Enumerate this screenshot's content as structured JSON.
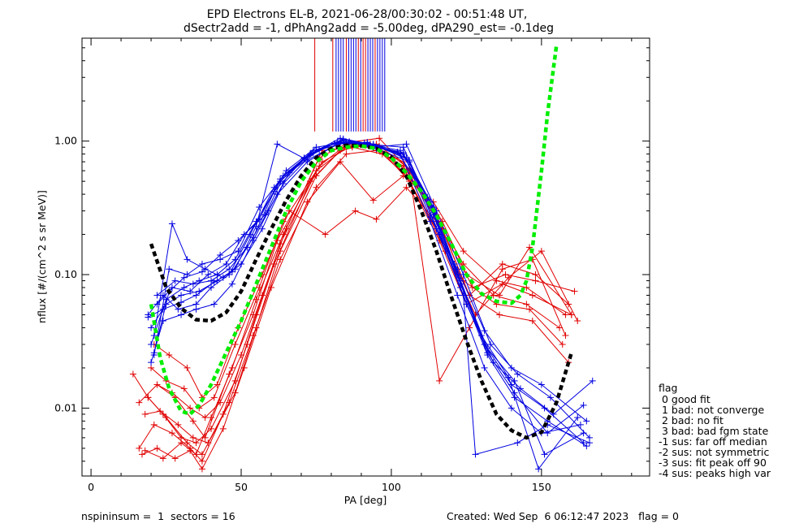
{
  "chart_data": {
    "type": "line",
    "title_line1": "EPD Electrons EL-B, 2021-06-28/00:30:02 - 00:51:48 UT,",
    "title_line2": "dSectr2add = -1, dPhAng2add = -5.00deg, dPA290_est=  -0.1deg",
    "xlabel": "PA [deg]",
    "ylabel": "nflux [#/(cm^2 s sr MeV)]",
    "xlim": [
      -3,
      186
    ],
    "ylim": [
      0.0031,
      5.9
    ],
    "yscale": "log",
    "xticks": [
      0,
      50,
      100,
      150
    ],
    "xtick_labels": [
      "0",
      "50",
      "100",
      "150"
    ],
    "yticks": [
      0.01,
      0.1,
      1.0
    ],
    "ytick_labels": [
      "0.01",
      "0.10",
      "1.00"
    ],
    "grid": false,
    "colors": {
      "red_data": "#e00000",
      "blue_data": "#0000e0",
      "black_fit": "#000000",
      "green_fit": "#00ee00"
    },
    "fits": [
      {
        "style": "black-dashed",
        "x": [
          20,
          25,
          30,
          35,
          40,
          45,
          50,
          55,
          60,
          65,
          70,
          75,
          80,
          85,
          90,
          95,
          100,
          105,
          110,
          115,
          120,
          125,
          130,
          135,
          140,
          145,
          150,
          155,
          160
        ],
        "y": [
          0.17,
          0.08,
          0.056,
          0.046,
          0.045,
          0.052,
          0.075,
          0.13,
          0.22,
          0.36,
          0.55,
          0.75,
          0.88,
          0.93,
          0.92,
          0.88,
          0.76,
          0.55,
          0.3,
          0.15,
          0.068,
          0.032,
          0.016,
          0.009,
          0.0068,
          0.006,
          0.0066,
          0.011,
          0.026
        ]
      },
      {
        "style": "green-dashed",
        "x": [
          20,
          23,
          26,
          30,
          33,
          36,
          40,
          45,
          50,
          55,
          60,
          65,
          70,
          75,
          80,
          85,
          90,
          95,
          100,
          105,
          110,
          115,
          120,
          125,
          130,
          135,
          140,
          143,
          145,
          147,
          150,
          152,
          155
        ],
        "y": [
          0.06,
          0.024,
          0.014,
          0.0095,
          0.009,
          0.0105,
          0.015,
          0.026,
          0.045,
          0.085,
          0.16,
          0.3,
          0.5,
          0.7,
          0.85,
          0.9,
          0.92,
          0.88,
          0.75,
          0.58,
          0.42,
          0.28,
          0.17,
          0.1,
          0.072,
          0.063,
          0.061,
          0.07,
          0.09,
          0.16,
          0.6,
          1.6,
          5.2
        ]
      }
    ],
    "vertical_lines": [
      {
        "x": 74.5,
        "color": "red"
      },
      {
        "x": 80.5,
        "color": "red"
      },
      {
        "x": 81.6,
        "color": "blue"
      },
      {
        "x": 82.4,
        "color": "blue"
      },
      {
        "x": 83.2,
        "color": "blue"
      },
      {
        "x": 84.0,
        "color": "blue"
      },
      {
        "x": 85.0,
        "color": "red"
      },
      {
        "x": 85.8,
        "color": "blue"
      },
      {
        "x": 86.6,
        "color": "blue"
      },
      {
        "x": 87.4,
        "color": "blue"
      },
      {
        "x": 88.2,
        "color": "blue"
      },
      {
        "x": 89.0,
        "color": "red"
      },
      {
        "x": 89.8,
        "color": "blue"
      },
      {
        "x": 90.6,
        "color": "red"
      },
      {
        "x": 91.4,
        "color": "red"
      },
      {
        "x": 92.2,
        "color": "blue"
      },
      {
        "x": 93.0,
        "color": "blue"
      },
      {
        "x": 93.8,
        "color": "blue"
      },
      {
        "x": 94.6,
        "color": "red"
      },
      {
        "x": 95.4,
        "color": "blue"
      },
      {
        "x": 96.2,
        "color": "blue"
      },
      {
        "x": 97.0,
        "color": "blue"
      },
      {
        "x": 97.8,
        "color": "blue"
      }
    ],
    "data_series": [
      {
        "color": "red",
        "x": [
          14,
          19,
          25,
          32,
          37,
          48,
          55,
          63,
          75,
          85,
          95,
          105,
          117,
          126,
          136,
          147,
          159
        ],
        "y": [
          0.018,
          0.012,
          0.0085,
          0.0055,
          0.0045,
          0.013,
          0.04,
          0.15,
          0.55,
          0.95,
          0.9,
          0.6,
          0.22,
          0.07,
          0.05,
          0.045,
          0.022
        ]
      },
      {
        "color": "red",
        "x": [
          16,
          21,
          27,
          33,
          37,
          44,
          52,
          61,
          73,
          83,
          93,
          104,
          115,
          124,
          135,
          146,
          157
        ],
        "y": [
          0.005,
          0.0075,
          0.0065,
          0.005,
          0.004,
          0.009,
          0.03,
          0.12,
          0.5,
          0.85,
          0.95,
          0.7,
          0.28,
          0.09,
          0.06,
          0.055,
          0.03
        ]
      },
      {
        "color": "red",
        "x": [
          16,
          22,
          28,
          34,
          38,
          46,
          54,
          62,
          75,
          85,
          95,
          105,
          116,
          125,
          137,
          147,
          160
        ],
        "y": [
          0.011,
          0.015,
          0.012,
          0.008,
          0.006,
          0.018,
          0.05,
          0.18,
          0.6,
          0.9,
          0.95,
          0.55,
          0.18,
          0.06,
          0.085,
          0.07,
          0.05
        ]
      },
      {
        "color": "red",
        "x": [
          18,
          24,
          30,
          35,
          40,
          47,
          55,
          64,
          76,
          86,
          96,
          106,
          117,
          127,
          138,
          148,
          161
        ],
        "y": [
          0.0048,
          0.0042,
          0.0055,
          0.0045,
          0.0085,
          0.02,
          0.065,
          0.2,
          0.75,
          0.98,
          0.92,
          0.62,
          0.25,
          0.08,
          0.1,
          0.09,
          0.075
        ]
      },
      {
        "color": "red",
        "x": [
          20,
          25,
          31,
          36,
          41,
          48,
          56,
          64,
          77,
          87,
          96,
          106,
          116,
          126,
          137,
          148,
          159
        ],
        "y": [
          0.02,
          0.016,
          0.014,
          0.01,
          0.012,
          0.03,
          0.08,
          0.25,
          0.7,
          0.92,
          0.88,
          0.5,
          0.2,
          0.07,
          0.12,
          0.1,
          0.06
        ]
      },
      {
        "color": "red",
        "x": [
          18,
          23,
          29,
          34,
          39,
          46,
          54,
          63,
          75,
          85,
          95,
          104,
          114,
          124,
          134,
          145,
          156
        ],
        "y": [
          0.009,
          0.0095,
          0.0075,
          0.006,
          0.0055,
          0.011,
          0.035,
          0.13,
          0.45,
          0.8,
          0.85,
          0.65,
          0.3,
          0.12,
          0.07,
          0.06,
          0.04
        ]
      },
      {
        "color": "red",
        "x": [
          17,
          22,
          28,
          33,
          37,
          44,
          51,
          60,
          72,
          83,
          94,
          104,
          114,
          124,
          135,
          145,
          158
        ],
        "y": [
          0.0045,
          0.005,
          0.0042,
          0.0048,
          0.0035,
          0.007,
          0.02,
          0.08,
          0.35,
          0.7,
          0.36,
          0.55,
          0.35,
          0.15,
          0.09,
          0.08,
          0.05
        ]
      },
      {
        "color": "red",
        "x": [
          21,
          26,
          32,
          37,
          42,
          49,
          57,
          66,
          78,
          88,
          95,
          105,
          115,
          125,
          136,
          146,
          160
        ],
        "y": [
          0.03,
          0.025,
          0.02,
          0.012,
          0.015,
          0.04,
          0.1,
          0.3,
          0.2,
          0.3,
          0.26,
          0.45,
          0.25,
          0.1,
          0.07,
          0.16,
          0.05
        ]
      },
      {
        "color": "red",
        "x": [
          19,
          24,
          30,
          35,
          40,
          48,
          55,
          63,
          76,
          86,
          96,
          106,
          116,
          126,
          137,
          147,
          158
        ],
        "y": [
          0.012,
          0.009,
          0.006,
          0.0055,
          0.007,
          0.016,
          0.05,
          0.17,
          0.65,
          0.98,
          1.05,
          0.6,
          0.016,
          0.04,
          0.11,
          0.13,
          0.035
        ]
      },
      {
        "color": "red",
        "x": [
          22,
          27,
          33,
          38,
          43,
          50,
          57,
          65,
          77,
          87,
          97,
          107,
          118,
          128,
          139,
          150,
          162
        ],
        "y": [
          0.015,
          0.013,
          0.01,
          0.0085,
          0.011,
          0.025,
          0.07,
          0.22,
          0.85,
          0.9,
          0.8,
          0.5,
          0.15,
          0.05,
          0.095,
          0.15,
          0.045
        ]
      },
      {
        "color": "blue",
        "x": [
          19,
          24,
          29,
          35,
          40,
          46,
          53,
          61,
          71,
          82,
          92,
          103,
          113,
          122,
          131,
          140,
          151,
          164
        ],
        "y": [
          0.05,
          0.07,
          0.055,
          0.06,
          0.08,
          0.1,
          0.2,
          0.45,
          0.75,
          0.98,
          0.95,
          0.85,
          0.35,
          0.1,
          0.03,
          0.015,
          0.01,
          0.0055
        ]
      },
      {
        "color": "blue",
        "x": [
          20,
          25,
          31,
          36,
          42,
          48,
          55,
          63,
          73,
          83,
          93,
          104,
          114,
          123,
          132,
          141,
          152,
          165
        ],
        "y": [
          0.03,
          0.065,
          0.08,
          0.09,
          0.1,
          0.13,
          0.25,
          0.5,
          0.8,
          1.05,
          0.92,
          0.8,
          0.28,
          0.08,
          0.025,
          0.012,
          0.008,
          0.0052
        ]
      },
      {
        "color": "blue",
        "x": [
          21,
          26,
          32,
          37,
          43,
          49,
          56,
          64,
          74,
          84,
          94,
          105,
          115,
          124,
          133,
          142,
          153,
          166
        ],
        "y": [
          0.025,
          0.11,
          0.1,
          0.12,
          0.13,
          0.15,
          0.32,
          0.55,
          0.85,
          1.0,
          0.9,
          0.95,
          0.3,
          0.1,
          0.03,
          0.018,
          0.012,
          0.006
        ]
      },
      {
        "color": "blue",
        "x": [
          20,
          24,
          30,
          35,
          41,
          47,
          54,
          62,
          72,
          82,
          92,
          103,
          113,
          122,
          131,
          140,
          150,
          163
        ],
        "y": [
          0.022,
          0.045,
          0.05,
          0.055,
          0.06,
          0.085,
          0.18,
          0.4,
          0.7,
          0.95,
          0.98,
          0.8,
          0.25,
          0.07,
          0.02,
          0.01,
          0.0065,
          0.0075
        ]
      },
      {
        "color": "blue",
        "x": [
          22,
          27,
          33,
          39,
          45,
          51,
          58,
          65,
          75,
          85,
          95,
          106,
          116,
          125,
          134,
          143,
          154,
          167
        ],
        "y": [
          0.06,
          0.08,
          0.075,
          0.1,
          0.12,
          0.2,
          0.28,
          0.6,
          0.9,
          0.98,
          0.88,
          0.7,
          0.2,
          0.06,
          0.022,
          0.014,
          0.009,
          0.016
        ]
      },
      {
        "color": "blue",
        "x": [
          21,
          27,
          32,
          38,
          44,
          50,
          57,
          64,
          74,
          84,
          94,
          105,
          114,
          123,
          132,
          141,
          151,
          164
        ],
        "y": [
          0.035,
          0.24,
          0.13,
          0.11,
          0.095,
          0.12,
          0.22,
          0.48,
          0.82,
          1.02,
          0.95,
          0.75,
          0.32,
          0.09,
          0.028,
          0.016,
          0.0045,
          0.0065
        ]
      },
      {
        "color": "blue",
        "x": [
          20,
          25,
          30,
          36,
          42,
          48,
          55,
          62,
          72,
          83,
          93,
          104,
          113,
          122,
          131,
          140,
          150,
          165
        ],
        "y": [
          0.04,
          0.06,
          0.07,
          0.075,
          0.09,
          0.11,
          0.23,
          0.95,
          0.72,
          0.97,
          0.93,
          0.82,
          0.27,
          0.11,
          0.038,
          0.02,
          0.015,
          0.008
        ]
      },
      {
        "color": "blue",
        "x": [
          22,
          28,
          34,
          40,
          46,
          52,
          59,
          66,
          76,
          86,
          96,
          106,
          115,
          124,
          128,
          142,
          152,
          166
        ],
        "y": [
          0.07,
          0.09,
          0.085,
          0.09,
          0.11,
          0.16,
          0.3,
          0.58,
          0.86,
          0.99,
          0.9,
          0.72,
          0.22,
          0.07,
          0.0045,
          0.0055,
          0.0075,
          0.0055
        ]
      },
      {
        "color": "blue",
        "x": [
          19,
          24,
          30,
          35,
          41,
          47,
          54,
          61,
          71,
          81,
          91,
          102,
          112,
          121,
          130,
          139,
          149,
          162
        ],
        "y": [
          0.048,
          0.055,
          0.062,
          0.07,
          0.088,
          0.105,
          0.19,
          0.42,
          0.74,
          0.96,
          0.97,
          0.83,
          0.38,
          0.12,
          0.035,
          0.017,
          0.0035,
          0.0085
        ]
      },
      {
        "color": "blue",
        "x": [
          21,
          26,
          31,
          37,
          43,
          49,
          56,
          63,
          73,
          84,
          94,
          104,
          114,
          123,
          132,
          141,
          152,
          164
        ],
        "y": [
          0.026,
          0.075,
          0.095,
          0.105,
          0.14,
          0.18,
          0.26,
          0.52,
          0.8,
          1.04,
          0.94,
          0.9,
          0.29,
          0.085,
          0.026,
          0.013,
          0.0065,
          0.0105
        ]
      }
    ]
  },
  "legend": {
    "title": "flag",
    "entries": [
      " 0 good fit",
      " 1 bad: not converge",
      " 2 bad: no fit",
      " 3 bad: bad fgm state",
      "-1 sus: far off median",
      "-2 sus: not symmetric",
      "-3 sus: fit peak off 90",
      "-4 sus: peaks high var"
    ]
  },
  "footer": {
    "left": "nspininsum =  1  sectors = 16",
    "right": "Created: Wed Sep  6 06:12:47 2023   flag = 0"
  }
}
